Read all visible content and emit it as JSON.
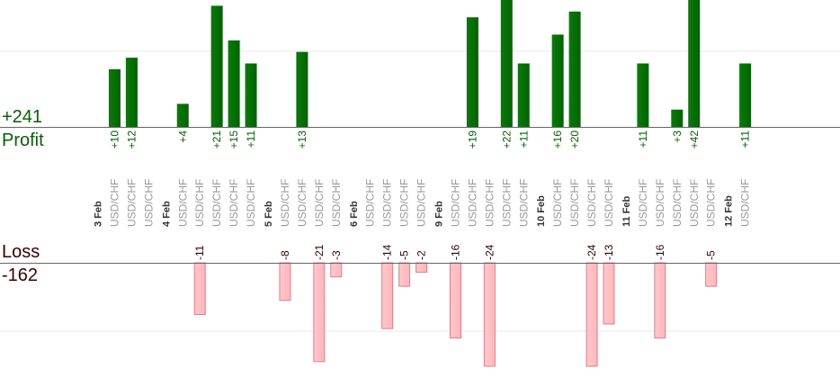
{
  "summary": {
    "profit_total": "+241",
    "profit_label": "Profit",
    "loss_label": "Loss",
    "loss_total": "-162"
  },
  "colors": {
    "profit_bar": "#006400",
    "profit_text": "#006400",
    "loss_bar": "#ffb6bb",
    "loss_bar_edge": "#e08088",
    "loss_text": "#3a0000",
    "axis": "#666666",
    "grid": "#e8e8e8",
    "category_text": "#999999",
    "date_text": "#333333"
  },
  "chart_data": {
    "type": "bar",
    "title": "",
    "xlabel": "",
    "ylabel": "",
    "grid": true,
    "columns": [
      {
        "kind": "date",
        "label": "3 Feb"
      },
      {
        "kind": "trade",
        "label": "USD/CHF",
        "profit": 10,
        "profit_label": "+10"
      },
      {
        "kind": "trade",
        "label": "USD/CHF",
        "profit": 12,
        "profit_label": "+12"
      },
      {
        "kind": "trade",
        "label": "USD/CHF"
      },
      {
        "kind": "date",
        "label": "4 Feb"
      },
      {
        "kind": "trade",
        "label": "USD/CHF",
        "profit": 4,
        "profit_label": "+4"
      },
      {
        "kind": "trade",
        "label": "USD/CHF",
        "loss": -11,
        "loss_label": "-11"
      },
      {
        "kind": "trade",
        "label": "USD/CHF",
        "profit": 21,
        "profit_label": "+21"
      },
      {
        "kind": "trade",
        "label": "USD/CHF",
        "profit": 15,
        "profit_label": "+15"
      },
      {
        "kind": "trade",
        "label": "USD/CHF",
        "profit": 11,
        "profit_label": "+11"
      },
      {
        "kind": "date",
        "label": "5 Feb"
      },
      {
        "kind": "trade",
        "label": "USD/CHF",
        "loss": -8,
        "loss_label": "-8"
      },
      {
        "kind": "trade",
        "label": "USD/CHF",
        "profit": 13,
        "profit_label": "+13"
      },
      {
        "kind": "trade",
        "label": "USD/CHF",
        "loss": -21,
        "loss_label": "-21"
      },
      {
        "kind": "trade",
        "label": "USD/CHF",
        "loss": -3,
        "loss_label": "-3"
      },
      {
        "kind": "date",
        "label": "6 Feb"
      },
      {
        "kind": "trade",
        "label": "USD/CHF"
      },
      {
        "kind": "trade",
        "label": "USD/CHF",
        "loss": -14,
        "loss_label": "-14"
      },
      {
        "kind": "trade",
        "label": "USD/CHF",
        "loss": -5,
        "loss_label": "-5"
      },
      {
        "kind": "trade",
        "label": "USD/CHF",
        "loss": -2,
        "loss_label": "-2"
      },
      {
        "kind": "date",
        "label": "9 Feb"
      },
      {
        "kind": "trade",
        "label": "USD/CHF",
        "loss": -16,
        "loss_label": "-16"
      },
      {
        "kind": "trade",
        "label": "USD/CHF",
        "profit": 19,
        "profit_label": "+19"
      },
      {
        "kind": "trade",
        "label": "USD/CHF",
        "loss": -24,
        "loss_label": "-24"
      },
      {
        "kind": "trade",
        "label": "USD/CHF",
        "profit": 22,
        "profit_label": "+22"
      },
      {
        "kind": "trade",
        "label": "USD/CHF",
        "profit": 11,
        "profit_label": "+11"
      },
      {
        "kind": "date",
        "label": "10 Feb"
      },
      {
        "kind": "trade",
        "label": "USD/CHF",
        "profit": 16,
        "profit_label": "+16"
      },
      {
        "kind": "trade",
        "label": "USD/CHF",
        "profit": 20,
        "profit_label": "+20"
      },
      {
        "kind": "trade",
        "label": "USD/CHF",
        "loss": -24,
        "loss_label": "-24"
      },
      {
        "kind": "trade",
        "label": "USD/CHF",
        "loss": -13,
        "loss_label": "-13"
      },
      {
        "kind": "date",
        "label": "11 Feb"
      },
      {
        "kind": "trade",
        "label": "USD/CHF",
        "profit": 11,
        "profit_label": "+11"
      },
      {
        "kind": "trade",
        "label": "USD/CHF",
        "loss": -16,
        "loss_label": "-16"
      },
      {
        "kind": "trade",
        "label": "USD/CHF",
        "profit": 3,
        "profit_label": "+3"
      },
      {
        "kind": "trade",
        "label": "USD/CHF",
        "profit": 42,
        "profit_label": "+42"
      },
      {
        "kind": "trade",
        "label": "USD/CHF",
        "loss": -5,
        "loss_label": "-5"
      },
      {
        "kind": "date",
        "label": "12 Feb"
      },
      {
        "kind": "trade",
        "label": "USD/CHF",
        "profit": 11,
        "profit_label": "+11"
      }
    ],
    "profit_axis_max": 22,
    "loss_axis_max": 22
  }
}
